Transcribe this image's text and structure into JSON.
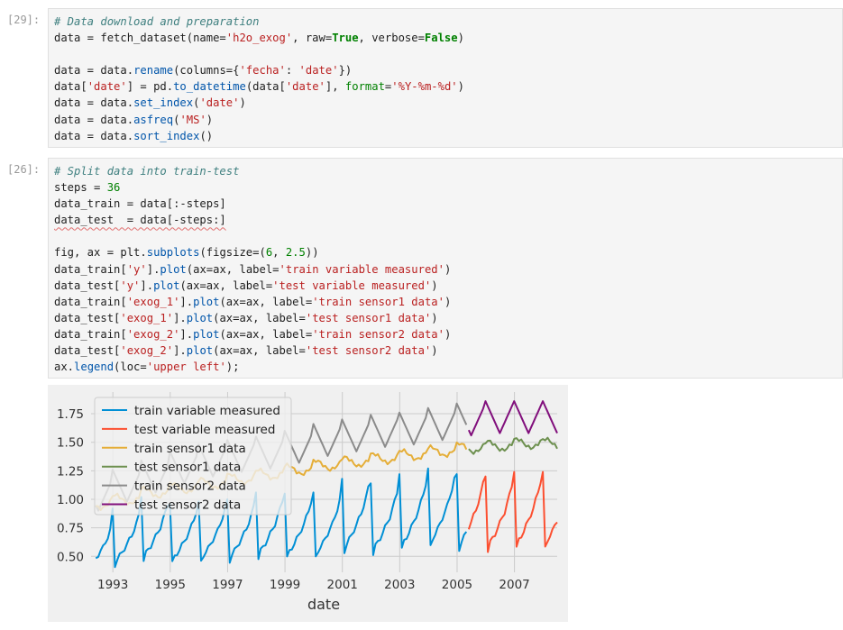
{
  "cells": [
    {
      "prompt": "[29]:",
      "lines": [
        [
          {
            "t": "c",
            "v": "# Data download and preparation"
          }
        ],
        [
          {
            "t": "p",
            "v": "data = fetch_dataset(name="
          },
          {
            "t": "s",
            "v": "'h2o_exog'"
          },
          {
            "t": "p",
            "v": ", raw="
          },
          {
            "t": "k",
            "v": "True"
          },
          {
            "t": "p",
            "v": ", verbose="
          },
          {
            "t": "k",
            "v": "False"
          },
          {
            "t": "p",
            "v": ")"
          }
        ],
        [],
        [
          {
            "t": "p",
            "v": "data = data."
          },
          {
            "t": "f",
            "v": "rename"
          },
          {
            "t": "p",
            "v": "(columns={"
          },
          {
            "t": "s",
            "v": "'fecha'"
          },
          {
            "t": "p",
            "v": ": "
          },
          {
            "t": "s",
            "v": "'date'"
          },
          {
            "t": "p",
            "v": "})"
          }
        ],
        [
          {
            "t": "p",
            "v": "data["
          },
          {
            "t": "s",
            "v": "'date'"
          },
          {
            "t": "p",
            "v": "] = pd."
          },
          {
            "t": "f",
            "v": "to_datetime"
          },
          {
            "t": "p",
            "v": "(data["
          },
          {
            "t": "s",
            "v": "'date'"
          },
          {
            "t": "p",
            "v": "], "
          },
          {
            "t": "n",
            "v": "format"
          },
          {
            "t": "p",
            "v": "="
          },
          {
            "t": "s",
            "v": "'%Y-%m-%d'"
          },
          {
            "t": "p",
            "v": ")"
          }
        ],
        [
          {
            "t": "p",
            "v": "data = data."
          },
          {
            "t": "f",
            "v": "set_index"
          },
          {
            "t": "p",
            "v": "("
          },
          {
            "t": "s",
            "v": "'date'"
          },
          {
            "t": "p",
            "v": ")"
          }
        ],
        [
          {
            "t": "p",
            "v": "data = data."
          },
          {
            "t": "f",
            "v": "asfreq"
          },
          {
            "t": "p",
            "v": "("
          },
          {
            "t": "s",
            "v": "'MS'"
          },
          {
            "t": "p",
            "v": ")"
          }
        ],
        [
          {
            "t": "p",
            "v": "data = data."
          },
          {
            "t": "f",
            "v": "sort_index"
          },
          {
            "t": "p",
            "v": "()"
          }
        ]
      ]
    },
    {
      "prompt": "[26]:",
      "lines": [
        [
          {
            "t": "c",
            "v": "# Split data into train-test"
          }
        ],
        [
          {
            "t": "p",
            "v": "steps = "
          },
          {
            "t": "n",
            "v": "36"
          }
        ],
        [
          {
            "t": "p",
            "v": "data_train = data[:-steps]"
          }
        ],
        [
          {
            "t": "q",
            "v": "data_test  = data[-steps:]"
          }
        ],
        [],
        [
          {
            "t": "p",
            "v": "fig, ax = plt."
          },
          {
            "t": "f",
            "v": "subplots"
          },
          {
            "t": "p",
            "v": "(figsize=("
          },
          {
            "t": "n",
            "v": "6"
          },
          {
            "t": "p",
            "v": ", "
          },
          {
            "t": "n",
            "v": "2.5"
          },
          {
            "t": "p",
            "v": "))"
          }
        ],
        [
          {
            "t": "p",
            "v": "data_train["
          },
          {
            "t": "s",
            "v": "'y'"
          },
          {
            "t": "p",
            "v": "]."
          },
          {
            "t": "f",
            "v": "plot"
          },
          {
            "t": "p",
            "v": "(ax=ax, label="
          },
          {
            "t": "s",
            "v": "'train variable measured'"
          },
          {
            "t": "p",
            "v": ")"
          }
        ],
        [
          {
            "t": "p",
            "v": "data_test["
          },
          {
            "t": "s",
            "v": "'y'"
          },
          {
            "t": "p",
            "v": "]."
          },
          {
            "t": "f",
            "v": "plot"
          },
          {
            "t": "p",
            "v": "(ax=ax, label="
          },
          {
            "t": "s",
            "v": "'test variable measured'"
          },
          {
            "t": "p",
            "v": ")"
          }
        ],
        [
          {
            "t": "p",
            "v": "data_train["
          },
          {
            "t": "s",
            "v": "'exog_1'"
          },
          {
            "t": "p",
            "v": "]."
          },
          {
            "t": "f",
            "v": "plot"
          },
          {
            "t": "p",
            "v": "(ax=ax, label="
          },
          {
            "t": "s",
            "v": "'train sensor1 data'"
          },
          {
            "t": "p",
            "v": ")"
          }
        ],
        [
          {
            "t": "p",
            "v": "data_test["
          },
          {
            "t": "s",
            "v": "'exog_1'"
          },
          {
            "t": "p",
            "v": "]."
          },
          {
            "t": "f",
            "v": "plot"
          },
          {
            "t": "p",
            "v": "(ax=ax, label="
          },
          {
            "t": "s",
            "v": "'test sensor1 data'"
          },
          {
            "t": "p",
            "v": ")"
          }
        ],
        [
          {
            "t": "p",
            "v": "data_train["
          },
          {
            "t": "s",
            "v": "'exog_2'"
          },
          {
            "t": "p",
            "v": "]."
          },
          {
            "t": "f",
            "v": "plot"
          },
          {
            "t": "p",
            "v": "(ax=ax, label="
          },
          {
            "t": "s",
            "v": "'train sensor2 data'"
          },
          {
            "t": "p",
            "v": ")"
          }
        ],
        [
          {
            "t": "p",
            "v": "data_test["
          },
          {
            "t": "s",
            "v": "'exog_2'"
          },
          {
            "t": "p",
            "v": "]."
          },
          {
            "t": "f",
            "v": "plot"
          },
          {
            "t": "p",
            "v": "(ax=ax, label="
          },
          {
            "t": "s",
            "v": "'test sensor2 data'"
          },
          {
            "t": "p",
            "v": ")"
          }
        ],
        [
          {
            "t": "p",
            "v": "ax."
          },
          {
            "t": "f",
            "v": "legend"
          },
          {
            "t": "p",
            "v": "(loc="
          },
          {
            "t": "s",
            "v": "'upper left'"
          },
          {
            "t": "p",
            "v": ");"
          }
        ]
      ]
    }
  ],
  "chart_data": {
    "type": "line",
    "title": "",
    "xlabel": "date",
    "ylabel": "",
    "xlim": [
      1992.25,
      2008.5
    ],
    "ylim": [
      0.36,
      1.94
    ],
    "x_ticks": [
      "1993",
      "1995",
      "1997",
      "1999",
      "2001",
      "2003",
      "2005",
      "2007"
    ],
    "y_ticks": [
      "0.50",
      "0.75",
      "1.00",
      "1.25",
      "1.50",
      "1.75"
    ],
    "grid": true,
    "legend_placement": "upper-left",
    "start_year": 1992.4167,
    "split_year": 2005.4167,
    "series": [
      {
        "name": "train variable measured",
        "color": "#008fd5",
        "key": "y_train"
      },
      {
        "name": "test variable measured",
        "color": "#fc4f30",
        "key": "y_test"
      },
      {
        "name": "train sensor1 data",
        "color": "#e5ae38",
        "key": "e1_train"
      },
      {
        "name": "test sensor1 data",
        "color": "#6d904f",
        "key": "e1_test"
      },
      {
        "name": "train sensor2 data",
        "color": "#8b8b8b",
        "key": "e2_train"
      },
      {
        "name": "test sensor2 data",
        "color": "#810f7c",
        "key": "e2_test"
      }
    ],
    "y_peaks_by_year": [
      0.78,
      0.92,
      1.02,
      0.96,
      0.98,
      1.0,
      1.06,
      1.05,
      1.06,
      1.18,
      1.14,
      1.22,
      1.27,
      1.22,
      1.2,
      1.24
    ],
    "exog1_base": [
      0.96,
      1.0,
      1.06,
      1.1,
      1.14,
      1.18,
      1.22,
      1.26,
      1.3,
      1.33,
      1.36,
      1.39,
      1.42,
      1.45,
      1.47,
      1.49
    ],
    "exog2_peak": [
      1.18,
      1.26,
      1.34,
      1.42,
      1.48,
      1.52,
      1.55,
      1.6,
      1.66,
      1.7,
      1.74,
      1.76,
      1.8,
      1.84,
      1.86,
      1.86
    ]
  }
}
